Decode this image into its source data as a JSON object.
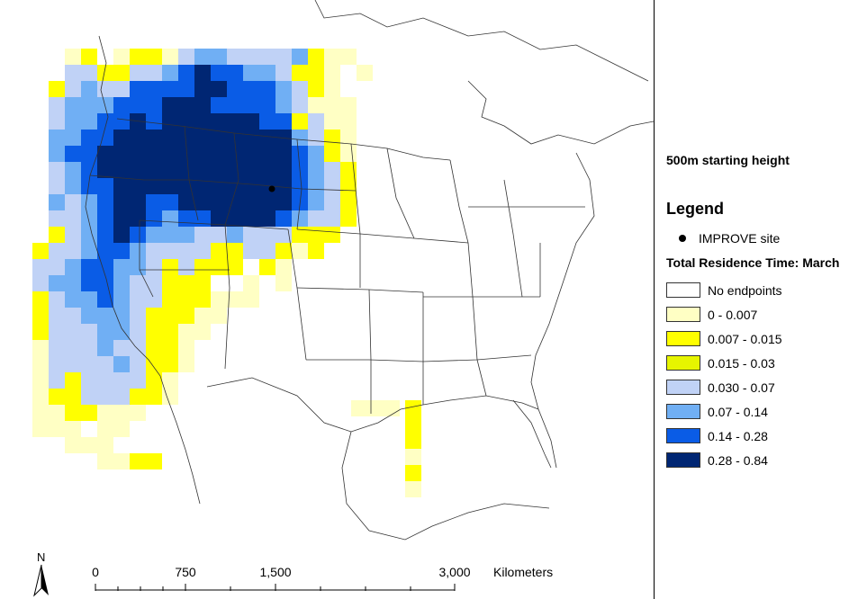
{
  "map": {
    "subtitle": "500m starting height",
    "legend_title": "Legend",
    "site_label": "IMPROVE site",
    "section_title": "Total Residence Time: March",
    "classes": [
      {
        "label": "No endpoints",
        "color": "#ffffff"
      },
      {
        "label": "0 - 0.007",
        "color": "#ffffc4"
      },
      {
        "label": "0.007 - 0.015",
        "color": "#ffff00"
      },
      {
        "label": "0.015 - 0.03",
        "color": "#e6f500"
      },
      {
        "label": "0.030 - 0.07",
        "color": "#c0d2f6"
      },
      {
        "label": "0.07 - 0.14",
        "color": "#70aff4"
      },
      {
        "label": "0.14 - 0.28",
        "color": "#0a5ce6"
      },
      {
        "label": "0.28 - 0.84",
        "color": "#002673"
      }
    ],
    "scale_ticks": [
      "0",
      "750",
      "1,500",
      "3,000"
    ],
    "scale_unit": "Kilometers",
    "north_label": "N"
  }
}
